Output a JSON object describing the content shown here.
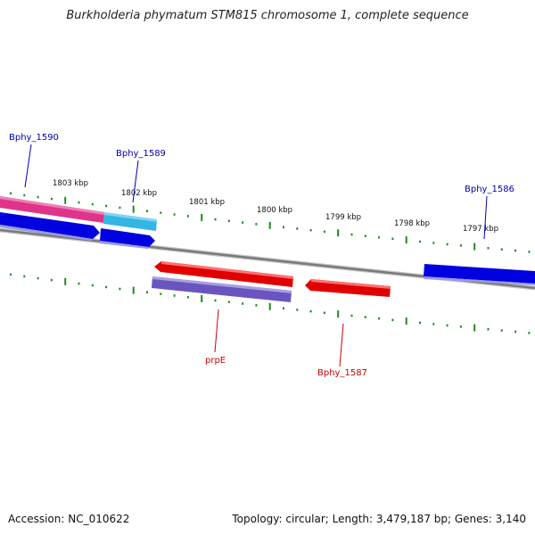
{
  "title": "Burkholderia phymatum STM815 chromosome 1, complete sequence",
  "footer": {
    "accession": "Accession: NC_010622",
    "topology": "Topology: circular; Length: 3,479,187 bp; Genes: 3,140"
  },
  "colors": {
    "backbone": "#808080",
    "tick": "#1e8a1e",
    "forward_label": "#0000b0",
    "reverse_label": "#cc0000"
  },
  "ticks": [
    "1803 kbp",
    "1802 kbp",
    "1801 kbp",
    "1800 kbp",
    "1799 kbp",
    "1798 kbp",
    "1797 kbp"
  ],
  "genes": [
    {
      "id": "g-pink",
      "label": "",
      "color": "#e0338a",
      "strand": "forward"
    },
    {
      "id": "g-cyan",
      "label": "",
      "color": "#33b5e5",
      "strand": "forward"
    },
    {
      "id": "g-1590",
      "label": "Bphy_1590",
      "color": "#0000e0",
      "strand": "forward"
    },
    {
      "id": "g-1589",
      "label": "Bphy_1589",
      "color": "#0000e0",
      "strand": "forward"
    },
    {
      "id": "g-1586",
      "label": "Bphy_1586",
      "color": "#0000e0",
      "strand": "forward"
    },
    {
      "id": "g-prpE-red",
      "label": "",
      "color": "#e00000",
      "strand": "reverse"
    },
    {
      "id": "g-prpE",
      "label": "prpE",
      "color": "#6a55c0",
      "strand": "reverse"
    },
    {
      "id": "g-1587",
      "label": "Bphy_1587",
      "color": "#e00000",
      "strand": "reverse"
    }
  ]
}
